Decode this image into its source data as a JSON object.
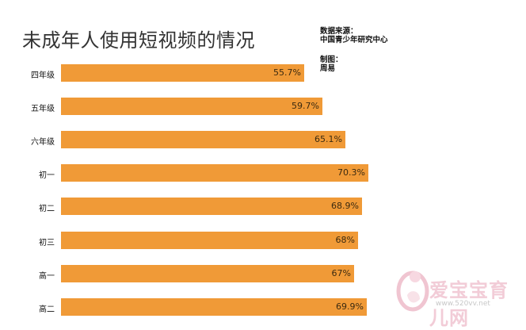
{
  "chart_data": {
    "type": "bar",
    "title": "未成年人使用短视频的情况",
    "source_label": "数据来源：",
    "source": "中国青少年研究中心",
    "maker_label": "制图：",
    "maker": "周易",
    "categories": [
      "四年级",
      "五年级",
      "六年级",
      "初一",
      "初二",
      "初三",
      "高一",
      "高二"
    ],
    "values": [
      55.7,
      59.7,
      65.1,
      70.3,
      68.9,
      68,
      67,
      69.9
    ],
    "value_labels": [
      "55.7%",
      "59.7%",
      "65.1%",
      "70.3%",
      "68.9%",
      "68%",
      "67%",
      "69.9%"
    ],
    "unit": "%",
    "orientation": "horizontal",
    "xlim": [
      0,
      100
    ],
    "grid": false,
    "bar_color": "#f09a37"
  },
  "watermark": {
    "brand": "爱宝宝育儿网",
    "url": "www.520vv.net"
  }
}
